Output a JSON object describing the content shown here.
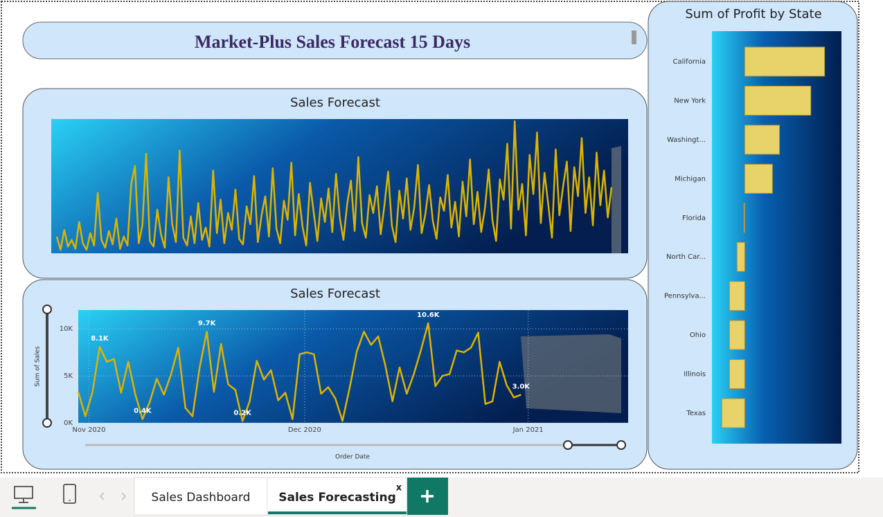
{
  "header": {
    "title": "Market-Plus Sales Forecast 15 Days"
  },
  "chart_data": [
    {
      "type": "line",
      "title": "Sales Forecast",
      "color": "#dcb400",
      "ylim": [
        0,
        12000
      ],
      "values": [
        1500,
        300,
        2100,
        600,
        1200,
        400,
        2800,
        900,
        300,
        1800,
        700,
        5400,
        1200,
        500,
        2000,
        800,
        3100,
        400,
        1500,
        700,
        6200,
        7800,
        900,
        2500,
        8900,
        1100,
        600,
        3900,
        1700,
        500,
        6800,
        2600,
        1000,
        9200,
        1400,
        700,
        3300,
        900,
        4500,
        1200,
        2300,
        600,
        7400,
        1800,
        4800,
        900,
        3600,
        2100,
        5700,
        1300,
        800,
        4200,
        2600,
        6900,
        1000,
        3400,
        5100,
        1500,
        7600,
        2200,
        900,
        4700,
        3000,
        8100,
        1600,
        5300,
        2400,
        700,
        6300,
        3700,
        1100,
        4900,
        2800,
        5800,
        1900,
        7100,
        3200,
        1200,
        4400,
        6500,
        2000,
        8600,
        2700,
        1400,
        5200,
        3600,
        6000,
        1700,
        4300,
        7300,
        2500,
        1000,
        5600,
        3100,
        6700,
        2100,
        4100,
        7900,
        1800,
        3500,
        6100,
        2900,
        1300,
        5000,
        3800,
        7000,
        2300,
        4600,
        1500,
        6400,
        3300,
        8400,
        2600,
        5500,
        1900,
        4000,
        7500,
        3000,
        1100,
        6600,
        4800,
        9800,
        2200,
        11800,
        3900,
        6200,
        1600,
        8800,
        5300,
        10800,
        2700,
        7200,
        4400,
        1400,
        9300,
        3400,
        6000,
        8200,
        2000,
        7700,
        5100,
        10300,
        3600,
        6800,
        2500,
        9000,
        4300,
        7400,
        3200,
        5900
      ]
    },
    {
      "type": "line",
      "title": "Sales Forecast",
      "color": "#dcb400",
      "ylabel": "Sum of Sales",
      "xlabel": "Order Date",
      "xlim": [
        0,
        77
      ],
      "ylim": [
        0,
        12000
      ],
      "xticks": [
        {
          "value": 1.5,
          "label": "Nov 2020"
        },
        {
          "value": 31.7,
          "label": "Dec 2020"
        },
        {
          "value": 63,
          "label": "Jan 2021"
        }
      ],
      "yticks": [
        {
          "value": 0,
          "label": "0K"
        },
        {
          "value": 5000,
          "label": "5K"
        },
        {
          "value": 10000,
          "label": "10K"
        }
      ],
      "x": [
        0,
        1,
        2,
        3,
        4,
        5,
        6,
        7,
        8,
        9,
        10,
        11,
        12,
        13,
        14,
        15,
        16,
        17,
        18,
        19,
        20,
        21,
        22,
        23,
        24,
        25,
        26,
        27,
        28,
        29,
        30,
        31,
        32,
        33,
        34,
        35,
        36,
        37,
        38,
        39,
        40,
        41,
        42,
        43,
        44,
        45,
        46,
        47,
        48,
        49,
        50,
        51,
        52,
        53,
        54,
        55,
        56,
        57,
        58,
        59,
        60,
        61,
        62
      ],
      "values": [
        3300,
        700,
        3300,
        8100,
        6500,
        6800,
        3200,
        6500,
        3000,
        400,
        2200,
        4700,
        3000,
        5200,
        8000,
        1600,
        700,
        5900,
        9700,
        3300,
        8400,
        4100,
        3500,
        200,
        2300,
        6600,
        4600,
        5600,
        2400,
        3200,
        400,
        7300,
        7500,
        7300,
        3100,
        3800,
        2600,
        200,
        3700,
        7600,
        9700,
        8300,
        9200,
        6100,
        2300,
        5900,
        3100,
        5200,
        7800,
        10600,
        3900,
        5000,
        5200,
        7700,
        7500,
        8000,
        9600,
        2000,
        2300,
        6500,
        4000,
        2700,
        3000
      ],
      "value_labels": [
        null,
        null,
        null,
        "8.1K",
        null,
        null,
        null,
        null,
        null,
        "0.4K",
        null,
        null,
        null,
        null,
        null,
        null,
        null,
        null,
        "9.7K",
        null,
        null,
        null,
        null,
        "0.2K",
        null,
        null,
        null,
        null,
        null,
        null,
        null,
        null,
        null,
        null,
        null,
        null,
        null,
        null,
        null,
        null,
        null,
        null,
        null,
        null,
        null,
        null,
        null,
        null,
        null,
        "10.6K",
        null,
        null,
        null,
        null,
        null,
        null,
        null,
        null,
        null,
        null,
        null,
        null,
        "3.0K"
      ]
    },
    {
      "type": "hbar",
      "title": "Sum of Profit by State",
      "color": "#e8d26a",
      "xlim": [
        -20000,
        59000
      ],
      "categories": [
        "California",
        "New York",
        "Washingt...",
        "Michigan",
        "Florida",
        "North Car...",
        "Pennsylva...",
        "Ohio",
        "Illinois",
        "Texas"
      ],
      "values": [
        48700,
        40300,
        21200,
        16900,
        -500,
        -4700,
        -9300,
        -9300,
        -9300,
        -14000
      ]
    }
  ],
  "tabs": {
    "items": [
      "Sales Dashboard",
      "Sales Forecasting"
    ],
    "close": "x"
  }
}
